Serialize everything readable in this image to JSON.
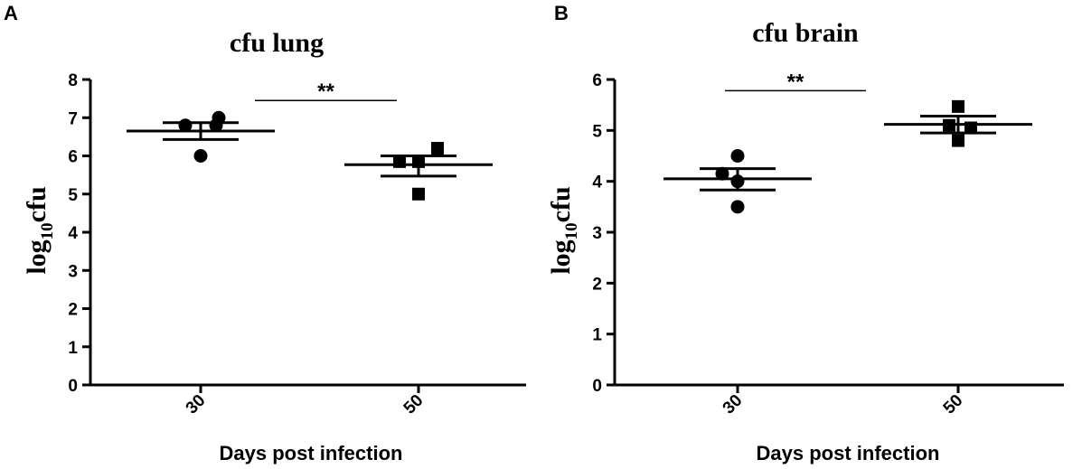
{
  "chart_data": [
    {
      "type": "scatter",
      "panel_label": "A",
      "title": "cfu lung",
      "ylabel_main": "log",
      "ylabel_sub": "10",
      "ylabel_unit": "cfu",
      "xlabel": "Days post infection",
      "categories": [
        "30",
        "50"
      ],
      "ylim": [
        0,
        8
      ],
      "yticks": [
        "0",
        "1",
        "2",
        "3",
        "4",
        "5",
        "6",
        "7",
        "8"
      ],
      "grid": false,
      "series": [
        {
          "marker": "circle",
          "category": "30",
          "values": [
            6.0,
            6.8,
            6.8,
            7.0
          ],
          "mean": 6.65,
          "sem_upper": 6.87,
          "sem_lower": 6.43
        },
        {
          "marker": "square",
          "category": "50",
          "values": [
            5.0,
            5.85,
            5.85,
            6.2
          ],
          "mean": 5.77,
          "sem_upper": 6.0,
          "sem_lower": 5.47
        }
      ],
      "significance": {
        "label": "**",
        "y": 7.45
      }
    },
    {
      "type": "scatter",
      "panel_label": "B",
      "title": "cfu brain",
      "ylabel_main": "log",
      "ylabel_sub": "10",
      "ylabel_unit": "cfu",
      "xlabel": "Days post infection",
      "categories": [
        "30",
        "50"
      ],
      "ylim": [
        0,
        6
      ],
      "yticks": [
        "0",
        "1",
        "2",
        "3",
        "4",
        "5",
        "6"
      ],
      "grid": false,
      "series": [
        {
          "marker": "circle",
          "category": "30",
          "values": [
            3.5,
            4.0,
            4.15,
            4.5
          ],
          "mean": 4.05,
          "sem_upper": 4.25,
          "sem_lower": 3.83
        },
        {
          "marker": "square",
          "category": "50",
          "values": [
            4.8,
            5.05,
            5.1,
            5.47
          ],
          "mean": 5.12,
          "sem_upper": 5.28,
          "sem_lower": 4.95
        }
      ],
      "significance": {
        "label": "**",
        "y": 5.78
      }
    }
  ]
}
